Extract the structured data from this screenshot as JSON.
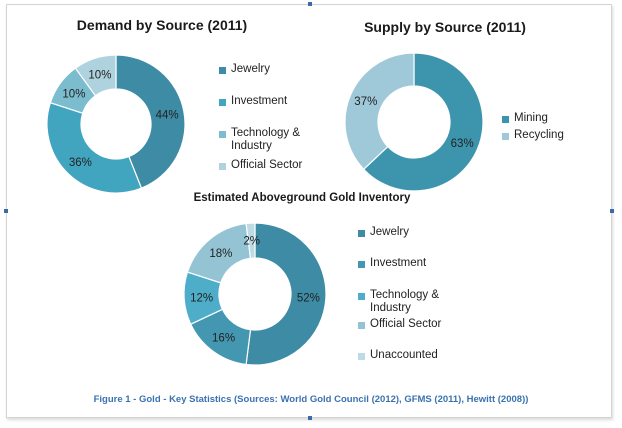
{
  "chart_data": [
    {
      "type": "pie",
      "title": "Demand by Source (2011)",
      "categories": [
        "Jewelry",
        "Investment",
        "Technology & Industry",
        "Official Sector"
      ],
      "values": [
        44,
        36,
        10,
        10
      ],
      "labels": [
        "44%",
        "36%",
        "10%",
        "10%"
      ],
      "colors": [
        "#3d8ba4",
        "#42a5c0",
        "#7bbccf",
        "#aed2de"
      ],
      "legend_position": "right"
    },
    {
      "type": "pie",
      "title": "Supply by Source (2011)",
      "categories": [
        "Mining",
        "Recycling"
      ],
      "values": [
        63,
        37
      ],
      "labels": [
        "63%",
        "37%"
      ],
      "colors": [
        "#3d95ad",
        "#9fc9d8"
      ],
      "legend_position": "right"
    },
    {
      "type": "pie",
      "title": "Estimated Aboveground Gold Inventory",
      "categories": [
        "Jewelry",
        "Investment",
        "Technology & Industry",
        "Official Sector",
        "Unaccounted"
      ],
      "values": [
        52,
        16,
        12,
        18,
        2
      ],
      "labels": [
        "52%",
        "16%",
        "12%",
        "18%",
        "2%"
      ],
      "colors": [
        "#3d8ba4",
        "#4497b0",
        "#4eadc8",
        "#94c4d4",
        "#bcdbe5"
      ],
      "legend_position": "right"
    }
  ],
  "caption": "Figure 1 - Gold - Key Statistics (Sources: World Gold Council (2012), GFMS (2011), Hewitt (2008))"
}
